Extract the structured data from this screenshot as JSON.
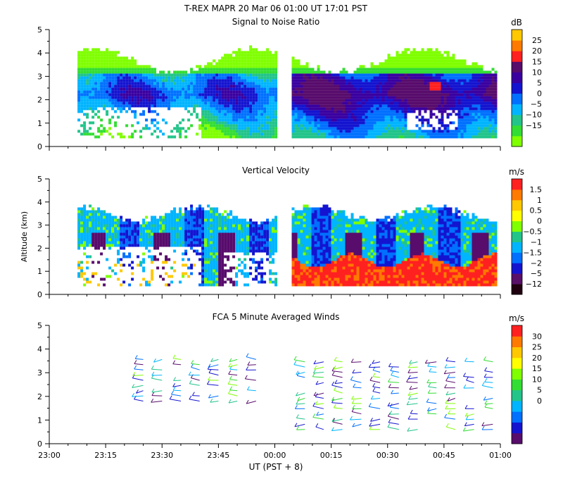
{
  "figure": {
    "title_line1": "T-REX   MAPR 20 Mar 06   01:00 UT   17:01   PST",
    "x_axis_label": "UT  (PST + 8)"
  },
  "chart_data": [
    {
      "type": "heatmap",
      "title": "Signal to Noise Ratio",
      "ylabel": "",
      "ylim": [
        0,
        5
      ],
      "yticks": [
        "0",
        "1",
        "2",
        "3",
        "4",
        "5"
      ],
      "xticks": [
        "23:00",
        "23:15",
        "23:30",
        "23:45",
        "00:00",
        "00:15",
        "00:30",
        "00:45",
        "01:00"
      ],
      "data_gap": [
        "00:00",
        "00:08"
      ],
      "colorbar": {
        "unit": "dB",
        "labels": [
          "25",
          "20",
          "15",
          "10",
          "5",
          "0",
          "−5",
          "−10",
          "−15"
        ],
        "colors": [
          "#7fff00",
          "#33dd33",
          "#22c48a",
          "#00b4ff",
          "#0070ff",
          "#1414d0",
          "#3a00a0",
          "#580c6c",
          "#ff2020",
          "#ff7a00",
          "#ffc800"
        ]
      }
    },
    {
      "type": "heatmap",
      "title": "Vertical Velocity",
      "ylabel": "Altitude  (km)",
      "ylim": [
        0,
        5
      ],
      "yticks": [
        "0",
        "1",
        "2",
        "3",
        "4",
        "5"
      ],
      "xticks": [
        "23:00",
        "23:15",
        "23:30",
        "23:45",
        "00:00",
        "00:15",
        "00:30",
        "00:45",
        "01:00"
      ],
      "colorbar": {
        "unit": "m/s",
        "labels": [
          "1.5",
          "1",
          "0.5",
          "0",
          "−0.5",
          "−1",
          "−1.5",
          "−2",
          "−5",
          "−12"
        ],
        "colors": [
          "#200010",
          "#581068",
          "#1414d0",
          "#0070ff",
          "#00b4ff",
          "#22c48a",
          "#7fff00",
          "#ffff00",
          "#ffc800",
          "#ff7a00",
          "#ff2020"
        ]
      }
    },
    {
      "type": "scatter",
      "title": "FCA 5 Minute Averaged Winds",
      "ylabel": "",
      "ylim": [
        0,
        5
      ],
      "yticks": [
        "0",
        "1",
        "2",
        "3",
        "4",
        "5"
      ],
      "xticks": [
        "23:00",
        "23:15",
        "23:30",
        "23:45",
        "00:00",
        "00:15",
        "00:30",
        "00:45",
        "01:00"
      ],
      "barb_times_min": [
        25,
        30,
        35,
        40,
        45,
        50,
        55,
        68,
        73,
        78,
        83,
        88,
        93,
        98,
        103,
        108,
        113,
        118
      ],
      "colorbar": {
        "unit": "m/s",
        "labels": [
          "30",
          "25",
          "20",
          "15",
          "10",
          "5",
          "0"
        ],
        "colors": [
          "#580c6c",
          "#1414d0",
          "#0070ff",
          "#00b4ff",
          "#22c48a",
          "#33dd33",
          "#7fff00",
          "#ffff00",
          "#ffc800",
          "#ff7a00",
          "#ff2020"
        ]
      }
    }
  ]
}
